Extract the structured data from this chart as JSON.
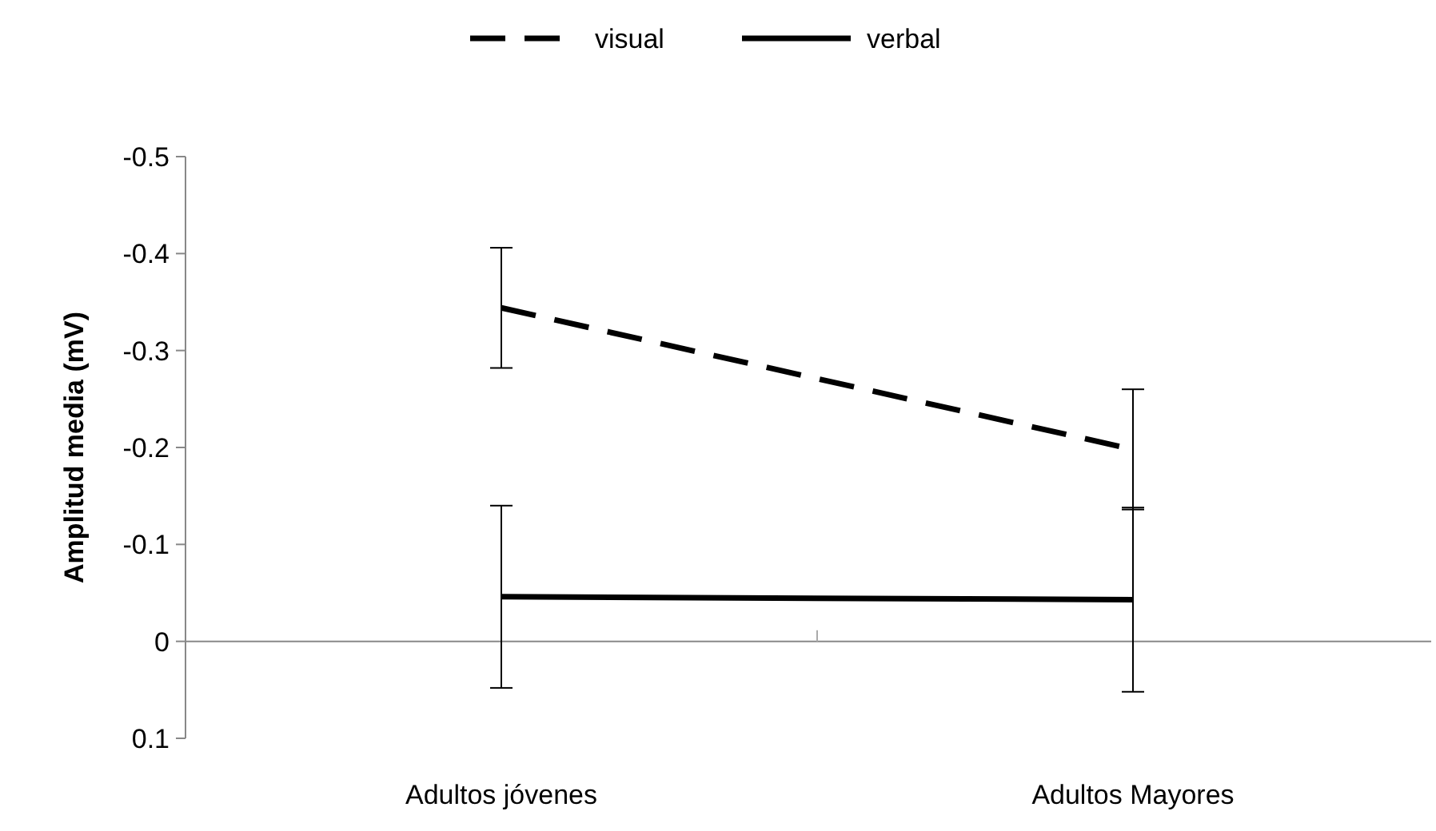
{
  "chart_data": {
    "type": "line",
    "ylabel": "Amplitud media (mV)",
    "categories": [
      "Adultos jóvenes",
      "Adultos Mayores"
    ],
    "series": [
      {
        "name": "visual",
        "color": "#000000",
        "line_style": "dashed",
        "values": [
          -0.344,
          -0.198
        ],
        "errors": [
          0.062,
          0.062
        ]
      },
      {
        "name": "verbal",
        "color": "#000000",
        "line_style": "solid",
        "values": [
          -0.046,
          -0.043
        ],
        "errors": [
          0.094,
          0.095
        ]
      }
    ],
    "ylim": [
      0.1,
      -0.5
    ],
    "yticks": [
      -0.5,
      -0.4,
      -0.3,
      -0.2,
      -0.1,
      0,
      0.1
    ],
    "legend": "top",
    "marker": "none"
  }
}
